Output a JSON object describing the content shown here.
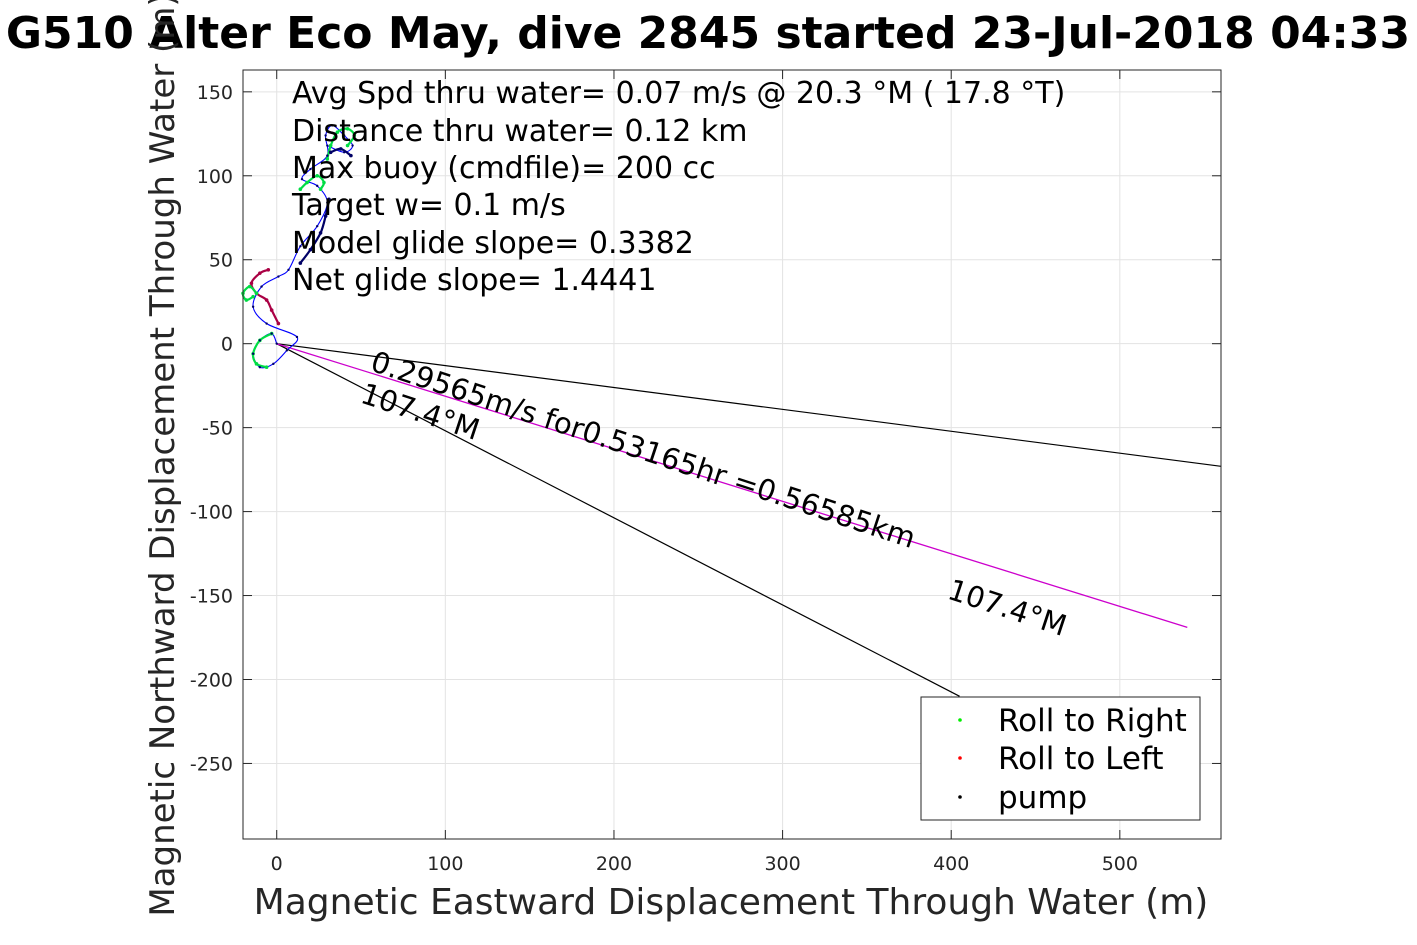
{
  "chart_data": {
    "type": "line",
    "title": "G510 Alter Eco May, dive 2845 started 23-Jul-2018 04:33",
    "xlabel": "Magnetic Eastward Displacement Through Water (m)",
    "ylabel": "Magnetic Northward Displacement Through Water (m)",
    "xlim": [
      -20,
      560
    ],
    "ylim": [
      -295,
      163
    ],
    "xticks": [
      0,
      100,
      200,
      300,
      400,
      500
    ],
    "yticks": [
      150,
      100,
      50,
      0,
      -50,
      -100,
      -150,
      -200,
      -250
    ],
    "grid": true,
    "annotations": [
      "Avg Spd thru water=  0.07 m/s @  20.3 °M ( 17.8 °T)",
      "Distance thru water=  0.12 km",
      "Max buoy (cmdfile)= 200 cc",
      "Target w= 0.1 m/s",
      "Model glide slope= 0.3382",
      "Net glide slope= 1.4441"
    ],
    "projection_label": "0.29565m/s for0.53165hr =0.56585km",
    "heading_label_1": "107.4°M",
    "heading_label_2": "107.4°M",
    "wedge_line_upper": {
      "x": [
        0,
        560
      ],
      "y": [
        0,
        -73
      ]
    },
    "wedge_line_lower": {
      "x": [
        0,
        405
      ],
      "y": [
        0,
        -210
      ]
    },
    "projected_track": {
      "x": [
        0,
        540
      ],
      "y": [
        0,
        -169
      ]
    },
    "track": {
      "x": [
        0,
        -3,
        -10,
        -14,
        -10,
        -2,
        6,
        12,
        -6,
        -14,
        -9,
        1,
        7,
        14,
        24,
        30,
        24,
        15,
        20,
        30,
        29,
        33,
        40,
        45,
        40,
        30
      ],
      "y": [
        0,
        6,
        2,
        -6,
        -14,
        -12,
        -4,
        4,
        12,
        22,
        34,
        40,
        44,
        58,
        70,
        84,
        94,
        98,
        104,
        112,
        124,
        130,
        124,
        118,
        114,
        118
      ]
    },
    "legend": {
      "position": "bottom-right",
      "entries": [
        {
          "label": "Roll to Right",
          "color": "#00ee00"
        },
        {
          "label": "Roll to Left",
          "color": "#ff0000"
        },
        {
          "label": "pump",
          "color": "#000000"
        }
      ]
    },
    "series_colors": {
      "track": "#0000ff",
      "projected": "#cc00cc",
      "wedge": "#000000",
      "roll_right": "#00dd44",
      "roll_left": "#aa0044",
      "pump": "#000066"
    },
    "segments": [
      {
        "kind": "roll_right",
        "x": [
          -3,
          -10,
          -14,
          -12,
          -6
        ],
        "y": [
          6,
          2,
          -6,
          -12,
          -14
        ]
      },
      {
        "kind": "roll_left",
        "x": [
          1,
          -3,
          -6,
          -12,
          -15,
          -10,
          -5
        ],
        "y": [
          12,
          20,
          26,
          30,
          36,
          42,
          44
        ]
      },
      {
        "kind": "roll_right",
        "x": [
          -14,
          -18,
          -20,
          -16,
          -12
        ],
        "y": [
          28,
          26,
          30,
          34,
          30
        ]
      },
      {
        "kind": "pump",
        "x": [
          14,
          20,
          26,
          29,
          31
        ],
        "y": [
          48,
          56,
          66,
          76,
          86
        ]
      },
      {
        "kind": "roll_right",
        "x": [
          14,
          18,
          24,
          28,
          26
        ],
        "y": [
          92,
          96,
          100,
          96,
          92
        ]
      },
      {
        "kind": "roll_right",
        "x": [
          30,
          32,
          36,
          42,
          46,
          42
        ],
        "y": [
          110,
          118,
          126,
          128,
          124,
          118
        ]
      },
      {
        "kind": "pump",
        "x": [
          32,
          38,
          44
        ],
        "y": [
          114,
          116,
          112
        ]
      }
    ]
  }
}
